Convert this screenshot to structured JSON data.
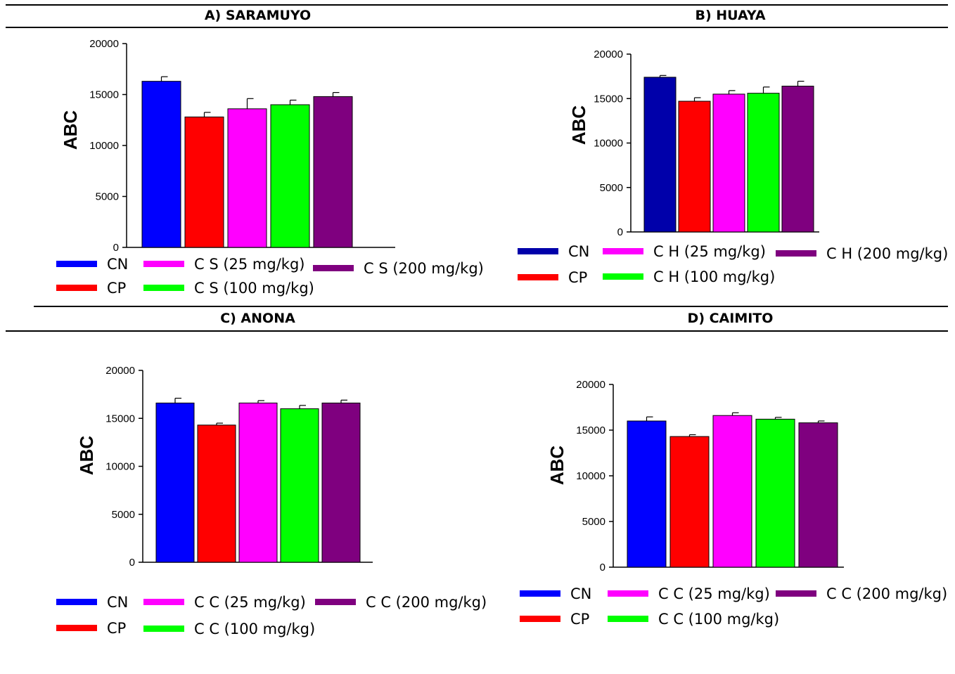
{
  "colors": {
    "CN": "#0000ff",
    "CN_dark": "#0000aa",
    "CP": "#ff0000",
    "low": "#ff00ff",
    "mid": "#00ff00",
    "high": "#7f007f"
  },
  "chart_data": [
    {
      "type": "bar",
      "title": "A) SARAMUYO",
      "ylabel": "ABC",
      "ylim": [
        0,
        20000
      ],
      "yticks": [
        "0",
        "5000",
        "10000",
        "15000",
        "20000"
      ],
      "categories": [
        "CN",
        "CP",
        "C S (25 mg/kg)",
        "C S (100 mg/kg)",
        "C S (200 mg/kg)"
      ],
      "values": [
        16300,
        12800,
        13600,
        14000,
        14800
      ],
      "errors": [
        450,
        450,
        1000,
        450,
        400
      ],
      "legend": [
        "CN",
        "CP",
        "C S (25 mg/kg)",
        "C S (100 mg/kg)",
        "C S (200 mg/kg)"
      ]
    },
    {
      "type": "bar",
      "title": "B) HUAYA",
      "ylabel": "ABC",
      "ylim": [
        0,
        20000
      ],
      "yticks": [
        "0",
        "5000",
        "10000",
        "15000",
        "20000"
      ],
      "categories": [
        "CN",
        "CP",
        "C H (25 mg/kg)",
        "C H (100 mg/kg)",
        "C H (200 mg/kg)"
      ],
      "values": [
        17400,
        14700,
        15500,
        15600,
        16400
      ],
      "errors": [
        200,
        400,
        400,
        700,
        550
      ],
      "legend": [
        "CN",
        "CP",
        "C H (25 mg/kg)",
        "C H (100 mg/kg)",
        "C H (200 mg/kg)"
      ]
    },
    {
      "type": "bar",
      "title": "C) ANONA",
      "ylabel": "ABC",
      "ylim": [
        0,
        20000
      ],
      "yticks": [
        "0",
        "5000",
        "10000",
        "15000",
        "20000"
      ],
      "categories": [
        "CN",
        "CP",
        "C C (25 mg/kg)",
        "C C (100 mg/kg)",
        "C C (200 mg/kg)"
      ],
      "values": [
        16600,
        14300,
        16600,
        16000,
        16600
      ],
      "errors": [
        500,
        200,
        250,
        350,
        300
      ],
      "legend": [
        "CN",
        "CP",
        "C C (25 mg/kg)",
        "C C (100 mg/kg)",
        "C C (200 mg/kg)"
      ]
    },
    {
      "type": "bar",
      "title": "D) CAIMITO",
      "ylabel": "ABC",
      "ylim": [
        0,
        20000
      ],
      "yticks": [
        "0",
        "5000",
        "10000",
        "15000",
        "20000"
      ],
      "categories": [
        "CN",
        "CP",
        "C C (25 mg/kg)",
        "C C (100 mg/kg)",
        "C C (200 mg/kg)"
      ],
      "values": [
        16000,
        14300,
        16600,
        16200,
        15800
      ],
      "errors": [
        450,
        200,
        300,
        200,
        200
      ],
      "legend": [
        "CN",
        "CP",
        "C C (25 mg/kg)",
        "C C (100 mg/kg)",
        "C C (200 mg/kg)"
      ]
    }
  ]
}
